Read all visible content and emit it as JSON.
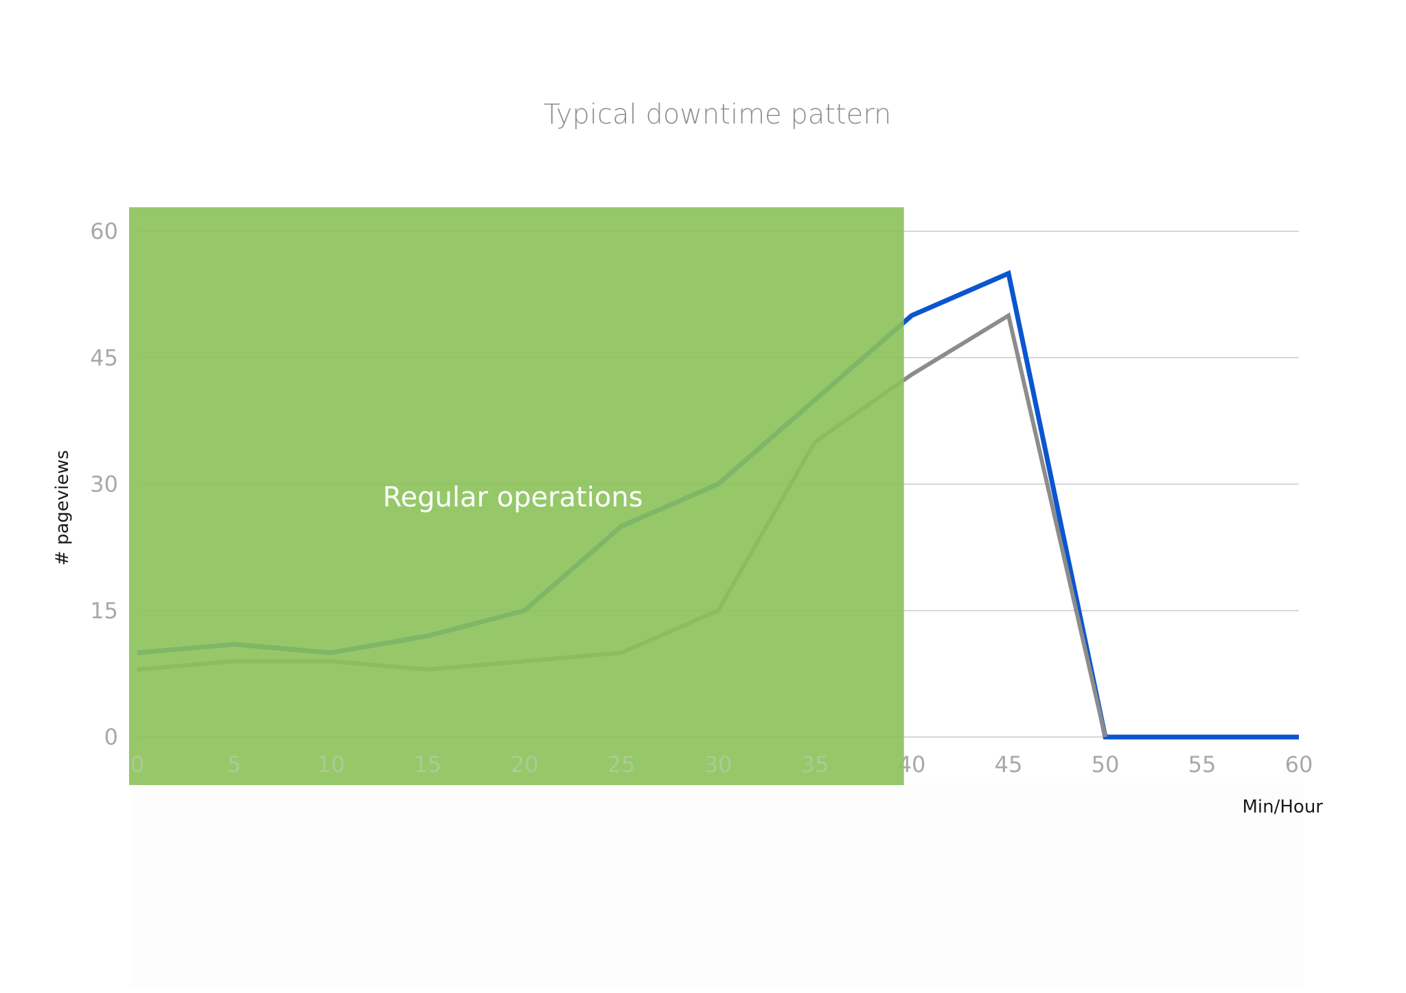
{
  "chart_data": {
    "type": "line",
    "title": "Typical downtime pattern",
    "xlabel": "Min/Hour",
    "ylabel": "# pageviews",
    "x": [
      0,
      5,
      10,
      15,
      20,
      25,
      30,
      35,
      40,
      45,
      50,
      55,
      60
    ],
    "xlim": [
      0,
      60
    ],
    "ylim": [
      0,
      60
    ],
    "x_ticks": [
      "0",
      "5",
      "10",
      "15",
      "20",
      "25",
      "30",
      "35",
      "40",
      "45",
      "50",
      "55",
      "60"
    ],
    "y_ticks": [
      "0",
      "15",
      "30",
      "45",
      "60"
    ],
    "grid": "horizontal",
    "series": [
      {
        "color": "#0b55d0",
        "values": [
          10,
          11,
          10,
          12,
          15,
          25,
          30,
          40,
          50,
          55,
          0,
          0,
          0
        ]
      },
      {
        "color": "#8c8c8c",
        "values": [
          8,
          9,
          9,
          8,
          9,
          10,
          15,
          35,
          43,
          50,
          0,
          null,
          null
        ]
      }
    ],
    "highlight_region": {
      "label": "Regular operations",
      "x_start": 0,
      "x_end": 39.6,
      "color": "#8bc25a"
    }
  }
}
